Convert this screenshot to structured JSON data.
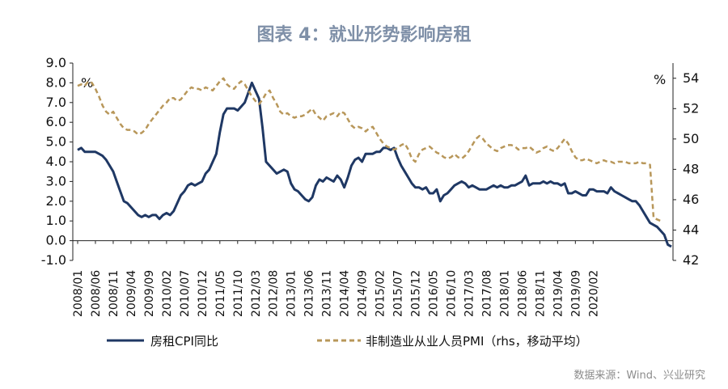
{
  "chart_data": {
    "type": "line",
    "title": "图表 4：就业形势影响房租",
    "left_unit": "%",
    "right_unit": "%",
    "source": "数据来源：Wind、兴业研究",
    "ylim": [
      -1.0,
      9.0
    ],
    "yticks": [
      "9.0",
      "8.0",
      "7.0",
      "6.0",
      "5.0",
      "4.0",
      "3.0",
      "2.0",
      "1.0",
      "0.0",
      "-1.0"
    ],
    "y2lim": [
      42,
      55
    ],
    "y2ticks": [
      "54",
      "52",
      "50",
      "48",
      "46",
      "44",
      "42"
    ],
    "xticks": [
      "2008/01",
      "2008/06",
      "2008/11",
      "2009/04",
      "2009/09",
      "2010/02",
      "2010/07",
      "2010/12",
      "2011/05",
      "2011/10",
      "2012/03",
      "2012/08",
      "2013/01",
      "2013/06",
      "2013/11",
      "2014/04",
      "2014/09",
      "2015/02",
      "2015/07",
      "2015/12",
      "2016/05",
      "2016/10",
      "2017/03",
      "2017/08",
      "2018/01",
      "2018/06",
      "2018/11",
      "2019/04",
      "2019/09",
      "2020/02"
    ],
    "x_start": "2008/01",
    "x_end": "2020/04",
    "legend_position": "bottom",
    "series": [
      {
        "name": "房租CPI同比",
        "axis": "left",
        "color": "#1f3864",
        "style": "solid",
        "values": [
          4.6,
          4.7,
          4.5,
          4.5,
          4.5,
          4.5,
          4.4,
          4.3,
          4.1,
          3.8,
          3.5,
          3.0,
          2.5,
          2.0,
          1.9,
          1.7,
          1.5,
          1.3,
          1.2,
          1.3,
          1.2,
          1.3,
          1.3,
          1.1,
          1.3,
          1.4,
          1.3,
          1.5,
          1.9,
          2.3,
          2.5,
          2.8,
          2.9,
          2.8,
          2.9,
          3.0,
          3.4,
          3.6,
          4.0,
          4.4,
          5.5,
          6.4,
          6.7,
          6.7,
          6.7,
          6.6,
          6.8,
          7.0,
          7.5,
          8.0,
          7.6,
          7.2,
          5.7,
          4.0,
          3.8,
          3.6,
          3.4,
          3.5,
          3.6,
          3.5,
          2.9,
          2.6,
          2.5,
          2.3,
          2.1,
          2.0,
          2.2,
          2.8,
          3.1,
          3.0,
          3.2,
          3.1,
          3.0,
          3.3,
          3.1,
          2.7,
          3.2,
          3.8,
          4.1,
          4.2,
          4.0,
          4.4,
          4.4,
          4.4,
          4.5,
          4.5,
          4.7,
          4.7,
          4.6,
          4.7,
          4.2,
          3.8,
          3.5,
          3.2,
          2.9,
          2.7,
          2.7,
          2.6,
          2.7,
          2.4,
          2.4,
          2.6,
          2.0,
          2.3,
          2.4,
          2.6,
          2.8,
          2.9,
          3.0,
          2.9,
          2.7,
          2.8,
          2.7,
          2.6,
          2.6,
          2.6,
          2.7,
          2.8,
          2.7,
          2.8,
          2.7,
          2.7,
          2.8,
          2.8,
          2.9,
          3.0,
          3.3,
          2.8,
          2.9,
          2.9,
          2.9,
          3.0,
          2.9,
          3.0,
          2.9,
          2.9,
          2.8,
          2.9,
          2.4,
          2.4,
          2.5,
          2.4,
          2.3,
          2.3,
          2.6,
          2.6,
          2.5,
          2.5,
          2.5,
          2.4,
          2.7,
          2.5,
          2.4,
          2.3,
          2.2,
          2.1,
          2.0,
          2.0,
          1.8,
          1.5,
          1.2,
          0.9,
          0.8,
          0.7,
          0.5,
          0.3,
          -0.2,
          -0.3
        ]
      },
      {
        "name": "非制造业从业人员PMI（rhs，移动平均）",
        "axis": "right",
        "color": "#b8975a",
        "style": "dashed",
        "values": [
          53.5,
          53.6,
          53.5,
          53.8,
          53.7,
          53.3,
          52.8,
          52.2,
          51.8,
          51.6,
          51.8,
          51.4,
          51.0,
          50.7,
          50.6,
          50.6,
          50.5,
          50.3,
          50.4,
          50.6,
          51.0,
          51.3,
          51.6,
          51.9,
          52.2,
          52.4,
          52.7,
          52.7,
          52.5,
          52.6,
          52.9,
          53.2,
          53.4,
          53.3,
          53.3,
          53.2,
          53.4,
          53.3,
          53.2,
          53.5,
          53.8,
          54.0,
          53.6,
          53.4,
          53.3,
          53.6,
          53.8,
          53.6,
          53.2,
          52.8,
          52.5,
          52.3,
          52.6,
          53.0,
          53.2,
          52.7,
          52.3,
          51.8,
          51.6,
          51.7,
          51.5,
          51.4,
          51.5,
          51.5,
          51.6,
          51.8,
          52.0,
          51.6,
          51.4,
          51.2,
          51.5,
          51.6,
          51.7,
          51.5,
          51.8,
          51.7,
          51.3,
          50.9,
          50.7,
          50.8,
          50.7,
          50.5,
          50.7,
          50.8,
          50.4,
          50.0,
          49.7,
          49.5,
          49.4,
          49.3,
          49.4,
          49.6,
          49.7,
          49.3,
          48.7,
          48.5,
          49.0,
          49.3,
          49.4,
          49.5,
          49.3,
          49.1,
          49.0,
          48.8,
          48.7,
          48.8,
          49.0,
          48.8,
          48.7,
          48.9,
          49.2,
          49.6,
          50.0,
          50.2,
          50.0,
          49.7,
          49.5,
          49.3,
          49.2,
          49.4,
          49.5,
          49.6,
          49.6,
          49.5,
          49.3,
          49.4,
          49.4,
          49.5,
          49.3,
          49.1,
          49.2,
          49.4,
          49.5,
          49.3,
          49.2,
          49.4,
          49.7,
          50.0,
          49.7,
          49.2,
          48.8,
          48.6,
          48.6,
          48.7,
          48.6,
          48.5,
          48.4,
          48.5,
          48.6,
          48.5,
          48.5,
          48.4,
          48.5,
          48.5,
          48.5,
          48.4,
          48.4,
          48.4,
          48.5,
          48.4,
          48.4,
          48.3,
          44.8,
          44.7,
          44.6
        ]
      }
    ]
  }
}
